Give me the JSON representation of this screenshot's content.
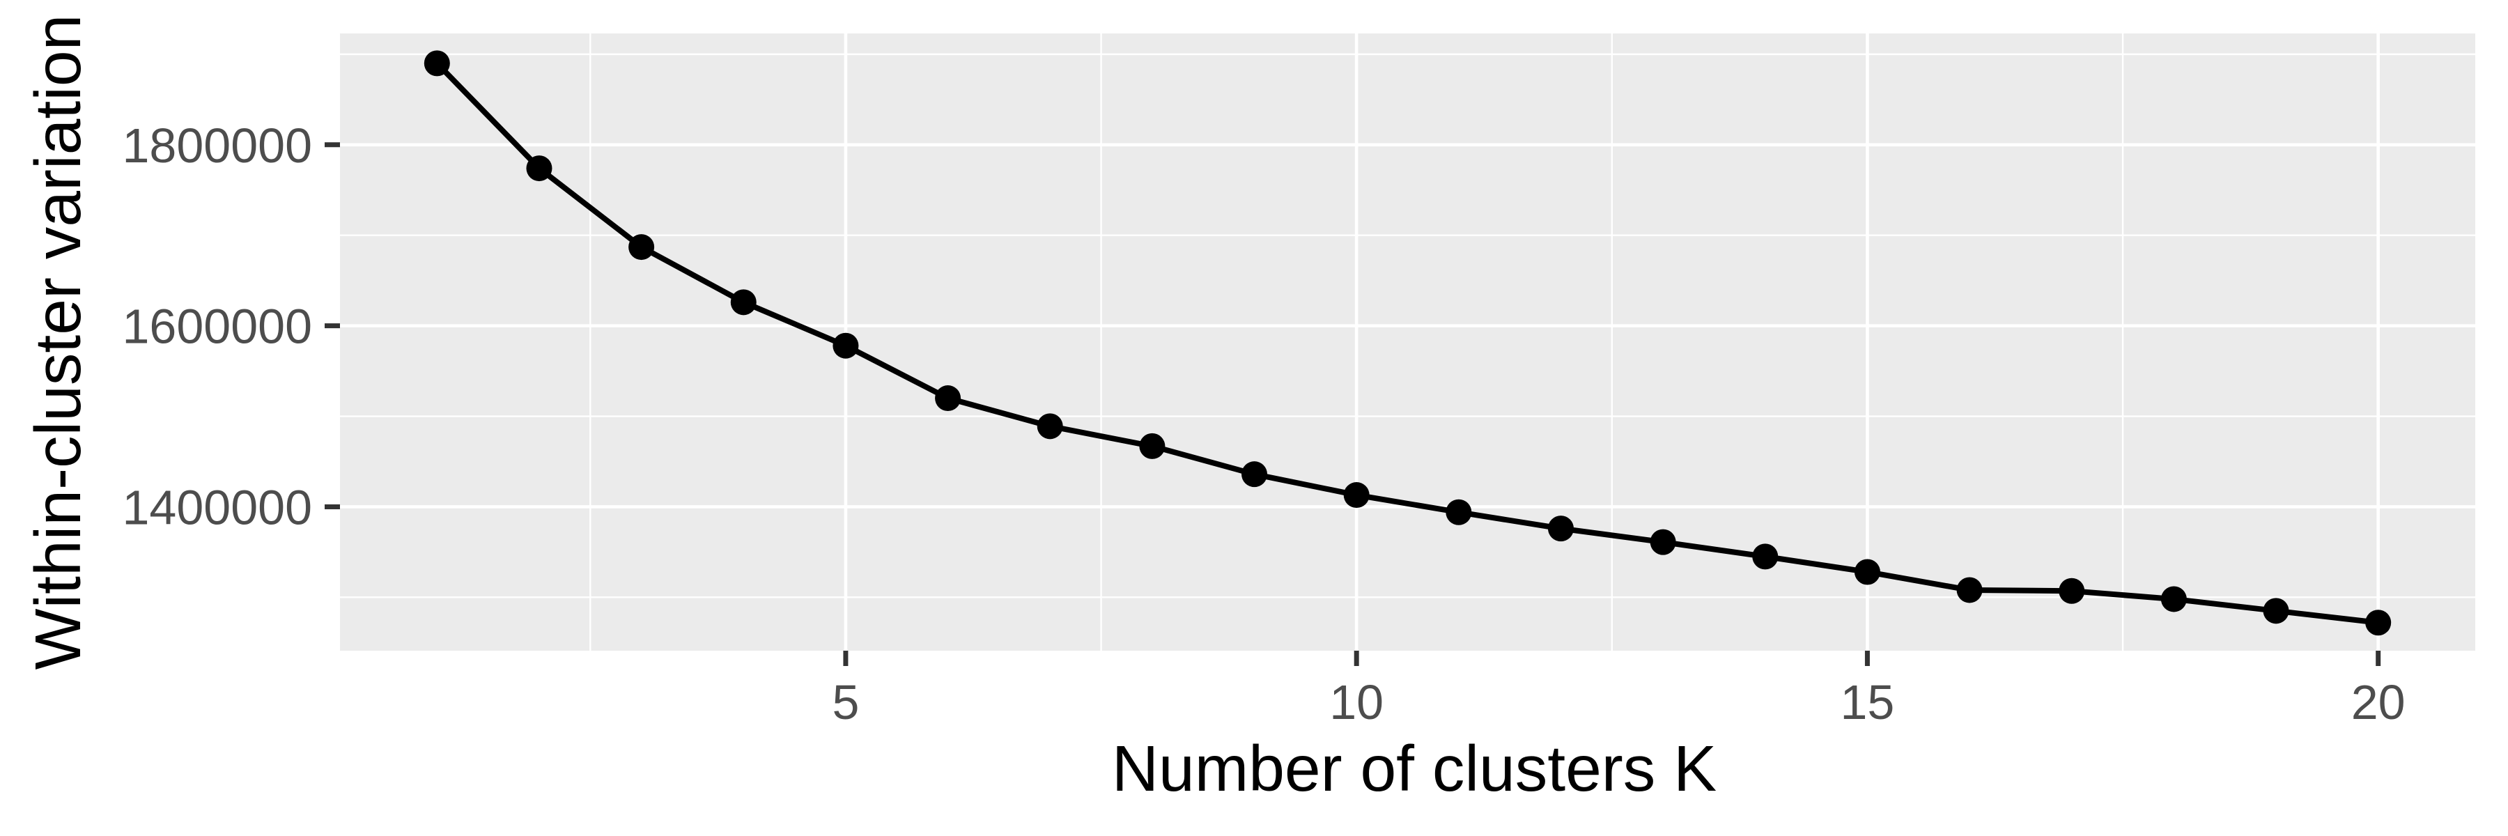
{
  "chart_data": {
    "type": "line",
    "title": "",
    "xlabel": "Number of clusters K",
    "ylabel": "Within-cluster variation",
    "series": [
      {
        "name": "within-cluster-variation",
        "x": [
          1,
          2,
          3,
          4,
          5,
          6,
          7,
          8,
          9,
          10,
          11,
          12,
          13,
          14,
          15,
          16,
          17,
          18,
          19,
          20
        ],
        "values": [
          1890000,
          1774000,
          1687000,
          1626000,
          1578000,
          1520000,
          1489000,
          1467000,
          1436000,
          1413000,
          1394000,
          1376000,
          1361000,
          1345000,
          1328000,
          1308000,
          1307000,
          1298000,
          1285000,
          1272000
        ]
      }
    ],
    "x_major_ticks": [
      5,
      10,
      15,
      20
    ],
    "x_major_tick_labels": [
      "5",
      "10",
      "15",
      "20"
    ],
    "x_minor_ticks": [
      2.5,
      7.5,
      12.5,
      17.5
    ],
    "y_major_ticks": [
      1400000,
      1600000,
      1800000
    ],
    "y_major_tick_labels": [
      "1400000",
      "1600000",
      "1800000"
    ],
    "y_minor_ticks": [
      1300000,
      1500000,
      1700000,
      1900000
    ],
    "xlim": [
      0.05,
      20.95
    ],
    "ylim": [
      1241000,
      1923000
    ],
    "expansion": 0.05,
    "grid": "on",
    "legend": "none",
    "style": {
      "panel_bg": "#ebebeb",
      "grid_color": "#ffffff",
      "tick_mark_color": "#333333",
      "tick_label_color": "#4d4d4d",
      "axis_title_color": "#000000",
      "line_color": "#000000",
      "point_color": "#000000"
    }
  }
}
